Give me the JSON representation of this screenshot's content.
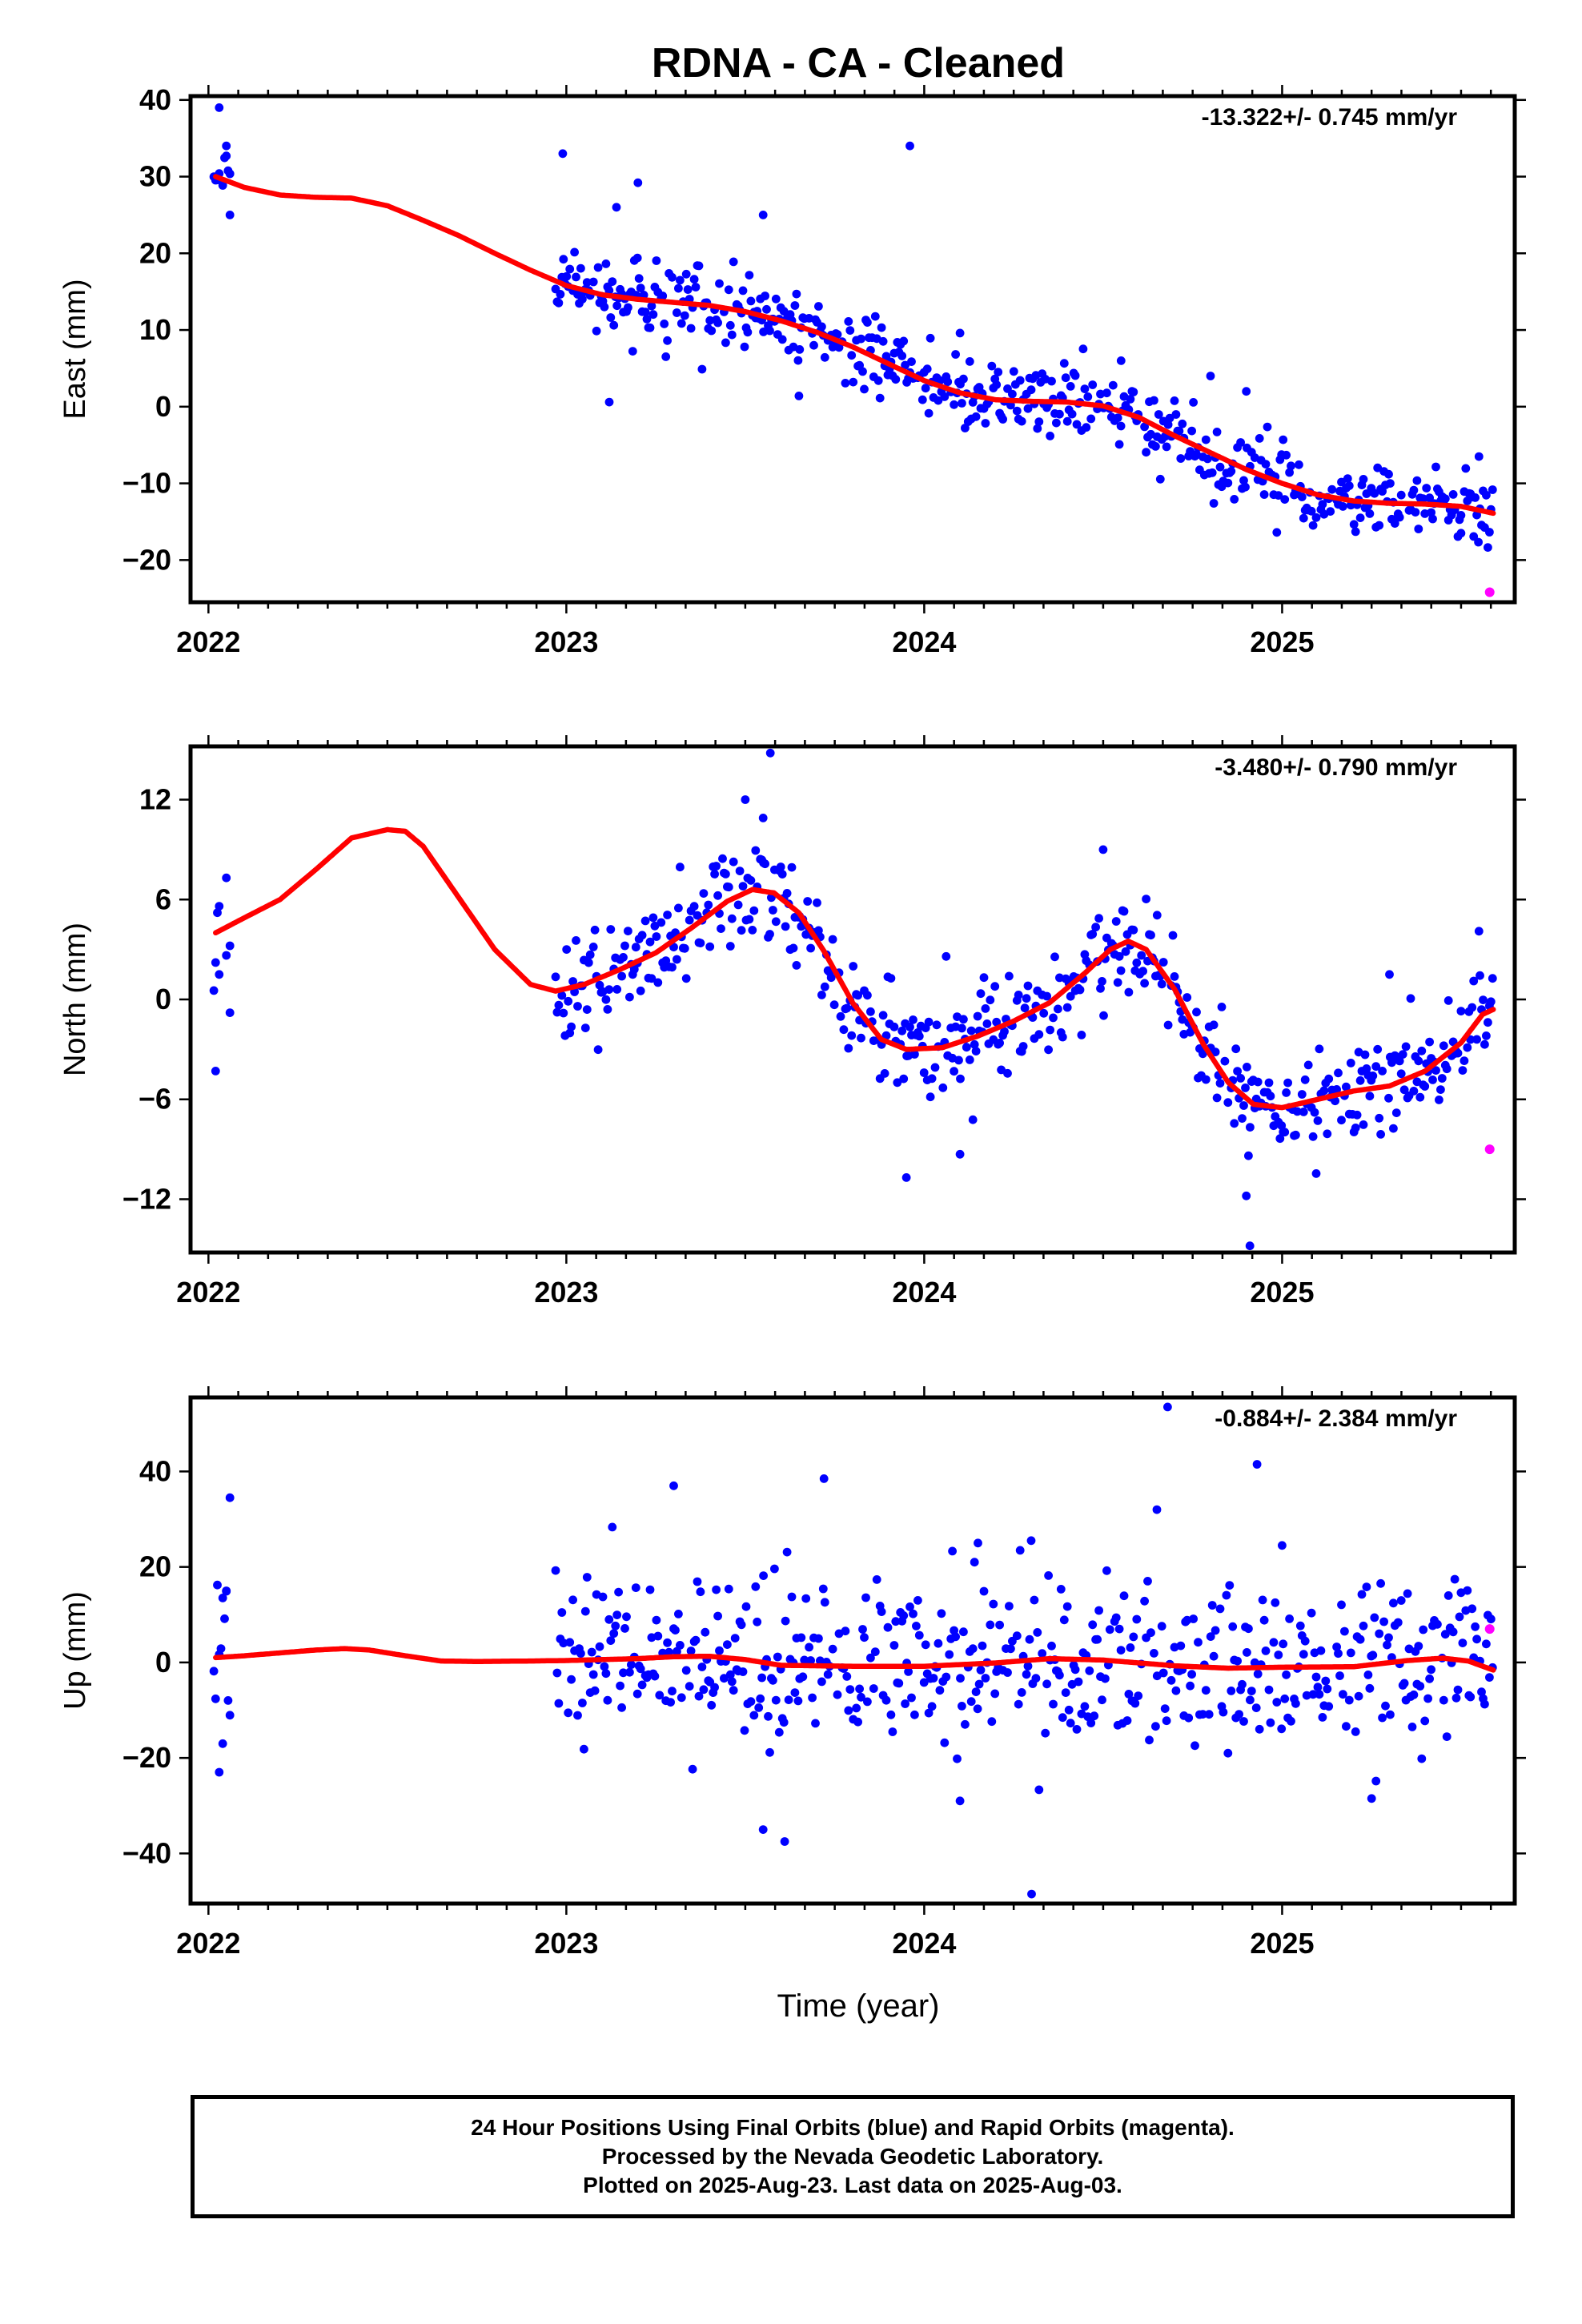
{
  "title": "RDNA  - CA - Cleaned",
  "xlabel": "Time (year)",
  "footer": {
    "line1": "24 Hour Positions Using Final Orbits (blue) and Rapid Orbits (magenta).",
    "line2": "Processed by the Nevada Geodetic Laboratory.",
    "line3": "Plotted on 2025-Aug-23. Last data on 2025-Aug-03."
  },
  "colors": {
    "final": "#0000ff",
    "rapid": "#ff00ff",
    "model": "#ff0000"
  },
  "chart_data": [
    {
      "type": "scatter",
      "ylabel": "East (mm)",
      "rate": "-13.322+/- 0.745 mm/yr",
      "xlim": [
        2021.95,
        2025.65
      ],
      "ylim": [
        -25.5,
        40.5
      ],
      "xticks": [
        2022,
        2023,
        2024,
        2025
      ],
      "yticks": [
        -20,
        -10,
        0,
        10,
        20,
        30,
        40
      ],
      "series": [
        {
          "kind": "model-curve",
          "x": [
            2022.02,
            2022.1,
            2022.2,
            2022.3,
            2022.4,
            2022.5,
            2022.6,
            2022.7,
            2022.8,
            2022.9,
            2023.0,
            2023.1,
            2023.2,
            2023.3,
            2023.4,
            2023.5,
            2023.6,
            2023.7,
            2023.8,
            2023.9,
            2024.0,
            2024.1,
            2024.2,
            2024.3,
            2024.4,
            2024.5,
            2024.6,
            2024.7,
            2024.8,
            2024.9,
            2025.0,
            2025.1,
            2025.2,
            2025.3,
            2025.4,
            2025.5,
            2025.59
          ],
          "y": [
            30.0,
            28.6,
            27.6,
            27.3,
            27.2,
            26.2,
            24.3,
            22.3,
            20.0,
            17.8,
            15.8,
            14.6,
            14.0,
            13.6,
            13.2,
            12.4,
            11.2,
            9.7,
            7.8,
            5.6,
            3.4,
            1.8,
            0.9,
            0.7,
            0.6,
            0.1,
            -1.4,
            -3.8,
            -6.0,
            -8.2,
            -10.0,
            -11.5,
            -12.3,
            -12.6,
            -12.7,
            -13.0,
            -13.9
          ]
        },
        {
          "kind": "final-orbits",
          "model": "perturb",
          "noise": 2.4,
          "outliers": [
            [
              2022.03,
              39.0
            ],
            [
              2022.05,
              34.0
            ],
            [
              2022.06,
              25.0
            ],
            [
              2022.99,
              33.0
            ],
            [
              2023.14,
              26.0
            ],
            [
              2023.2,
              29.2
            ],
            [
              2023.12,
              0.6
            ],
            [
              2023.55,
              25.0
            ],
            [
              2023.65,
              1.4
            ],
            [
              2023.96,
              34.0
            ],
            [
              2024.1,
              9.6
            ],
            [
              2024.55,
              6.0
            ],
            [
              2024.8,
              4.0
            ],
            [
              2024.9,
              2.0
            ],
            [
              2025.55,
              -6.5
            ],
            [
              2025.5,
              -16.5
            ]
          ]
        },
        {
          "kind": "rapid-orbits",
          "x": [
            2025.58
          ],
          "y": [
            -24.2
          ]
        }
      ]
    },
    {
      "type": "scatter",
      "ylabel": "North (mm)",
      "rate": "-3.480+/- 0.790 mm/yr",
      "xlim": [
        2021.95,
        2025.65
      ],
      "ylim": [
        -15.2,
        15.2
      ],
      "xticks": [
        2022,
        2023,
        2024,
        2025
      ],
      "yticks": [
        -12,
        -6,
        0,
        6,
        12
      ],
      "series": [
        {
          "kind": "model-curve",
          "x": [
            2022.02,
            2022.1,
            2022.2,
            2022.3,
            2022.4,
            2022.5,
            2022.55,
            2022.6,
            2022.7,
            2022.8,
            2022.9,
            2022.97,
            2023.05,
            2023.15,
            2023.25,
            2023.35,
            2023.45,
            2023.52,
            2023.58,
            2023.65,
            2023.72,
            2023.8,
            2023.88,
            2023.95,
            2024.05,
            2024.15,
            2024.25,
            2024.35,
            2024.45,
            2024.52,
            2024.57,
            2024.62,
            2024.7,
            2024.78,
            2024.85,
            2024.92,
            2025.0,
            2025.1,
            2025.2,
            2025.3,
            2025.4,
            2025.5,
            2025.56,
            2025.59
          ],
          "y": [
            4.0,
            4.9,
            6.0,
            7.8,
            9.7,
            10.2,
            10.1,
            9.2,
            6.1,
            3.0,
            0.9,
            0.5,
            0.9,
            1.8,
            2.8,
            4.3,
            5.9,
            6.6,
            6.4,
            5.2,
            2.9,
            -0.2,
            -2.4,
            -3.0,
            -2.9,
            -2.2,
            -1.3,
            -0.2,
            1.6,
            3.0,
            3.5,
            3.0,
            0.6,
            -2.7,
            -5.0,
            -6.3,
            -6.5,
            -6.0,
            -5.5,
            -5.2,
            -4.3,
            -2.6,
            -0.9,
            -0.6
          ]
        },
        {
          "kind": "final-orbits",
          "model": "perturb",
          "noise": 1.6,
          "outliers": [
            [
              2022.02,
              -4.3
            ],
            [
              2022.03,
              5.6
            ],
            [
              2022.05,
              7.3
            ],
            [
              2022.06,
              -0.8
            ],
            [
              2023.57,
              14.8
            ],
            [
              2023.5,
              12.0
            ],
            [
              2023.55,
              10.9
            ],
            [
              2023.95,
              -10.7
            ],
            [
              2024.1,
              -9.3
            ],
            [
              2024.5,
              9.0
            ],
            [
              2024.9,
              -11.8
            ],
            [
              2024.91,
              -14.8
            ],
            [
              2025.55,
              4.1
            ],
            [
              2025.3,
              1.5
            ]
          ]
        },
        {
          "kind": "rapid-orbits",
          "x": [
            2025.58
          ],
          "y": [
            -9.0
          ]
        }
      ]
    },
    {
      "type": "scatter",
      "ylabel": "Up (mm)",
      "rate": "-0.884+/- 2.384 mm/yr",
      "xlim": [
        2021.95,
        2025.65
      ],
      "ylim": [
        -50.5,
        55.5
      ],
      "xticks": [
        2022,
        2023,
        2024,
        2025
      ],
      "yticks": [
        -40,
        -20,
        0,
        20,
        40
      ],
      "series": [
        {
          "kind": "model-curve",
          "x": [
            2022.02,
            2022.1,
            2022.2,
            2022.3,
            2022.38,
            2022.45,
            2022.55,
            2022.65,
            2022.75,
            2022.9,
            2023.0,
            2023.2,
            2023.3,
            2023.4,
            2023.5,
            2023.6,
            2023.8,
            2024.0,
            2024.2,
            2024.35,
            2024.5,
            2024.7,
            2024.85,
            2025.0,
            2025.2,
            2025.35,
            2025.45,
            2025.52,
            2025.59
          ],
          "y": [
            1.0,
            1.4,
            2.0,
            2.6,
            2.9,
            2.6,
            1.4,
            0.3,
            0.2,
            0.3,
            0.4,
            0.8,
            1.2,
            1.3,
            0.6,
            -0.6,
            -0.8,
            -0.8,
            -0.1,
            0.8,
            0.5,
            -0.7,
            -1.2,
            -1.0,
            -0.9,
            0.4,
            0.9,
            0.3,
            -1.6
          ]
        },
        {
          "kind": "final-orbits",
          "model": "perturb",
          "noise": 9.0,
          "outliers": [
            [
              2022.03,
              -23.0
            ],
            [
              2022.05,
              15.0
            ],
            [
              2022.06,
              34.5
            ],
            [
              2022.04,
              -17.0
            ],
            [
              2023.3,
              37.0
            ],
            [
              2023.72,
              38.5
            ],
            [
              2023.55,
              -35.0
            ],
            [
              2023.61,
              -37.5
            ],
            [
              2024.1,
              -29.0
            ],
            [
              2024.3,
              -48.5
            ],
            [
              2024.68,
              53.5
            ],
            [
              2024.93,
              41.5
            ],
            [
              2025.25,
              -28.5
            ],
            [
              2024.65,
              32.0
            ],
            [
              2024.15,
              25.0
            ],
            [
              2025.0,
              24.5
            ]
          ]
        },
        {
          "kind": "rapid-orbits",
          "x": [
            2025.58
          ],
          "y": [
            7.0
          ]
        }
      ]
    }
  ]
}
